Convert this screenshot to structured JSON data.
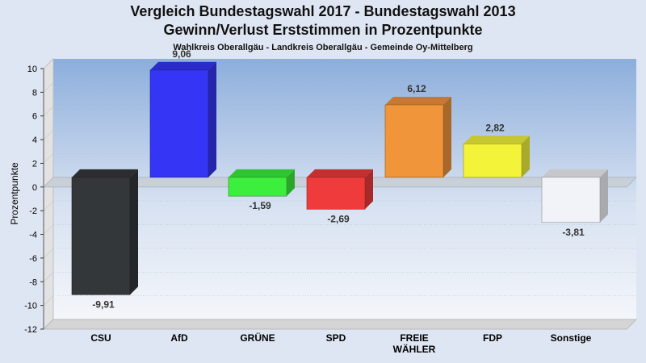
{
  "header": {
    "title_line1": "Vergleich Bundestagswahl 2017 - Bundestagswahl 2013",
    "title_line2": "Gewinn/Verlust Erststimmen in Prozentpunkte",
    "subtitle": "Wahlkreis Oberallgäu - Landkreis Oberallgäu - Gemeinde Oy-Mittelberg"
  },
  "chart_data": {
    "type": "bar",
    "title": "Vergleich Bundestagswahl 2017 - Bundestagswahl 2013 Gewinn/Verlust Erststimmen in Prozentpunkte",
    "subtitle": "Wahlkreis Oberallgäu - Landkreis Oberallgäu - Gemeinde Oy-Mittelberg",
    "xlabel": "",
    "ylabel": "Prozentpunkte",
    "ylim": [
      -12,
      10
    ],
    "yticks": [
      10,
      8,
      6,
      4,
      2,
      0,
      -2,
      -4,
      -6,
      -8,
      -10,
      -12
    ],
    "grid": true,
    "categories": [
      [
        "CSU"
      ],
      [
        "AfD"
      ],
      [
        "GRÜNE"
      ],
      [
        "SPD"
      ],
      [
        "FREIE",
        "WÄHLER"
      ],
      [
        "FDP"
      ],
      [
        "Sonstige"
      ]
    ],
    "values": [
      -9.91,
      9.06,
      -1.59,
      -2.69,
      6.12,
      2.82,
      -3.81
    ],
    "value_labels": [
      "-9,91",
      "9,06",
      "-1,59",
      "-2,69",
      "6,12",
      "2,82",
      "-3,81"
    ],
    "colors": [
      "#34373a",
      "#3535f5",
      "#3cef3c",
      "#ef3b3b",
      "#f0953a",
      "#f3f33a",
      "#f1f3f8"
    ]
  }
}
